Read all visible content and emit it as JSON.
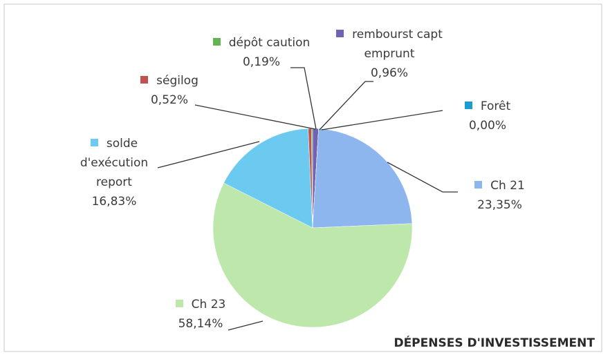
{
  "chart_data": {
    "type": "pie",
    "title": "DÉPENSES D'INVESTISSEMENT",
    "categories": [
      "rembourst capt emprunt",
      "Forêt",
      "Ch 21",
      "Ch 23",
      "solde d'exécution report",
      "ségilog",
      "dépôt caution"
    ],
    "values": [
      0.96,
      0.0,
      23.35,
      58.14,
      16.83,
      0.52,
      0.19
    ],
    "value_labels": [
      "0,96%",
      "0,00%",
      "23,35%",
      "58,14%",
      "16,83%",
      "0,52%",
      "0,19%"
    ],
    "colors": [
      "#7262b4",
      "#1b9bd1",
      "#8db6ef",
      "#bde7ab",
      "#6ccaf0",
      "#c25252",
      "#62b352"
    ]
  }
}
